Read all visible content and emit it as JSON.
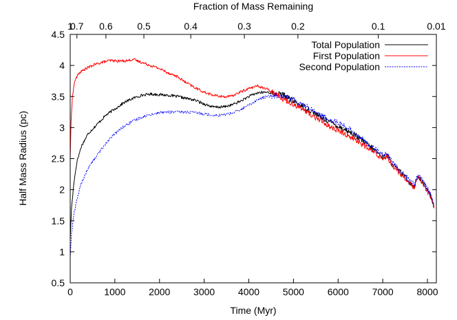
{
  "chart_data": {
    "type": "line",
    "xlabel": "Time (Myr)",
    "ylabel": "Half Mass Radius (pc)",
    "top_xlabel": "Fraction of Mass Remaining",
    "xlim": [
      0,
      8200
    ],
    "ylim": [
      0.5,
      4.5
    ],
    "x_ticks": [
      0,
      1000,
      2000,
      3000,
      4000,
      5000,
      6000,
      7000,
      8000
    ],
    "y_ticks": [
      0.5,
      1,
      1.5,
      2,
      2.5,
      3,
      3.5,
      4,
      4.5
    ],
    "y_tick_labels": [
      "0.5",
      "1",
      "1.5",
      "2",
      "2.5",
      "3",
      "3.5",
      "4",
      "4.5"
    ],
    "top_ticks": [
      {
        "label": "1",
        "time": 0
      },
      {
        "label": "0.7",
        "time": 150
      },
      {
        "label": "0.6",
        "time": 800
      },
      {
        "label": "0.5",
        "time": 1650
      },
      {
        "label": "0.4",
        "time": 2700
      },
      {
        "label": "0.3",
        "time": 3900
      },
      {
        "label": "0.2",
        "time": 5100
      },
      {
        "label": "0.1",
        "time": 6900
      },
      {
        "label": "0.01",
        "time": 8200
      }
    ],
    "legend_position": "top-right",
    "grid": false,
    "series": [
      {
        "name": "Total Population",
        "color": "#000000",
        "style": "solid",
        "x": [
          0,
          30,
          80,
          150,
          250,
          400,
          600,
          800,
          1000,
          1200,
          1400,
          1600,
          1800,
          2000,
          2200,
          2400,
          2600,
          2800,
          3000,
          3200,
          3400,
          3600,
          3800,
          4000,
          4200,
          4400,
          4600,
          4800,
          5000,
          5200,
          5400,
          5600,
          5800,
          6000,
          6200,
          6400,
          6600,
          6800,
          7000,
          7100,
          7200,
          7300,
          7400,
          7500,
          7600,
          7700,
          7800,
          7900,
          8000,
          8100,
          8150
        ],
        "y": [
          1.2,
          1.7,
          2.1,
          2.45,
          2.7,
          2.9,
          3.05,
          3.2,
          3.3,
          3.4,
          3.47,
          3.52,
          3.54,
          3.53,
          3.52,
          3.5,
          3.47,
          3.44,
          3.38,
          3.33,
          3.33,
          3.36,
          3.42,
          3.5,
          3.56,
          3.57,
          3.55,
          3.52,
          3.42,
          3.35,
          3.27,
          3.17,
          3.1,
          3.02,
          2.95,
          2.87,
          2.75,
          2.65,
          2.52,
          2.55,
          2.42,
          2.35,
          2.28,
          2.2,
          2.12,
          2.05,
          2.22,
          2.1,
          2.0,
          1.85,
          1.72
        ]
      },
      {
        "name": "First Population",
        "color": "#ff0000",
        "style": "solid",
        "x": [
          0,
          20,
          50,
          100,
          200,
          350,
          500,
          700,
          900,
          1100,
          1300,
          1400,
          1600,
          1800,
          2000,
          2200,
          2400,
          2600,
          2800,
          3000,
          3200,
          3400,
          3600,
          3800,
          4000,
          4200,
          4400,
          4600,
          4800,
          5000,
          5200,
          5400,
          5600,
          5800,
          6000,
          6200,
          6400,
          6600,
          6800,
          7000,
          7100,
          7200,
          7300,
          7400,
          7500,
          7600,
          7700,
          7800,
          7900,
          8000,
          8100,
          8150
        ],
        "y": [
          2.5,
          3.1,
          3.5,
          3.75,
          3.88,
          3.95,
          4.0,
          4.05,
          4.08,
          4.07,
          4.08,
          4.1,
          4.05,
          4.0,
          3.95,
          3.88,
          3.82,
          3.72,
          3.64,
          3.57,
          3.52,
          3.5,
          3.5,
          3.57,
          3.63,
          3.67,
          3.62,
          3.55,
          3.45,
          3.38,
          3.3,
          3.2,
          3.12,
          3.02,
          2.95,
          2.88,
          2.8,
          2.7,
          2.6,
          2.5,
          2.55,
          2.4,
          2.33,
          2.25,
          2.18,
          2.1,
          2.03,
          2.2,
          2.08,
          1.98,
          1.82,
          1.7
        ]
      },
      {
        "name": "Second Population",
        "color": "#0000ff",
        "style": "dotted",
        "x": [
          0,
          30,
          80,
          150,
          250,
          400,
          600,
          800,
          1000,
          1200,
          1400,
          1600,
          1800,
          2000,
          2200,
          2400,
          2600,
          2800,
          3000,
          3200,
          3400,
          3600,
          3800,
          4000,
          4200,
          4400,
          4600,
          4800,
          5000,
          5200,
          5400,
          5600,
          5800,
          6000,
          6200,
          6400,
          6600,
          6800,
          7000,
          7100,
          7200,
          7300,
          7400,
          7500,
          7600,
          7700,
          7800,
          7900,
          8000,
          8100,
          8150
        ],
        "y": [
          0.9,
          1.3,
          1.6,
          1.85,
          2.1,
          2.35,
          2.55,
          2.75,
          2.9,
          3.02,
          3.1,
          3.17,
          3.21,
          3.24,
          3.25,
          3.25,
          3.25,
          3.24,
          3.22,
          3.2,
          3.2,
          3.23,
          3.28,
          3.36,
          3.45,
          3.5,
          3.52,
          3.51,
          3.45,
          3.38,
          3.3,
          3.2,
          3.13,
          3.08,
          3.0,
          2.9,
          2.78,
          2.68,
          2.55,
          2.57,
          2.45,
          2.37,
          2.3,
          2.22,
          2.15,
          2.08,
          2.25,
          2.12,
          2.02,
          1.88,
          1.75
        ]
      }
    ]
  }
}
